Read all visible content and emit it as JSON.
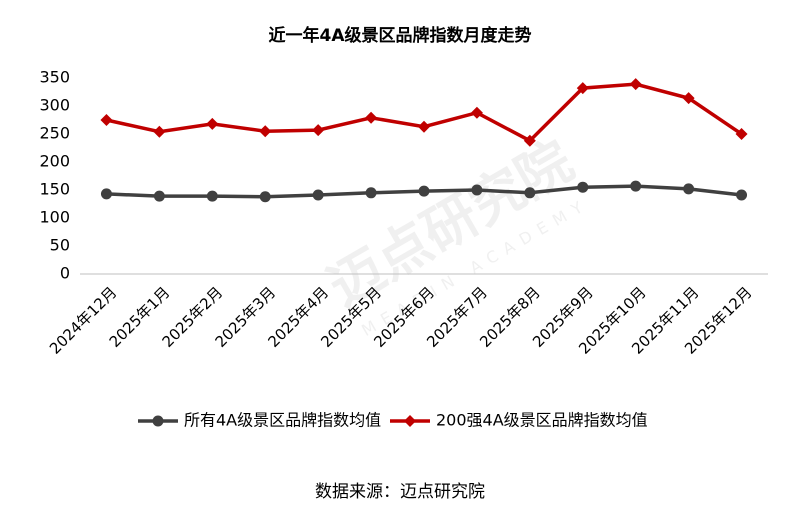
{
  "chart_data": {
    "type": "line",
    "title": "近一年4A级景区品牌指数月度走势",
    "categories": [
      "2024年12月",
      "2025年1月",
      "2025年2月",
      "2025年3月",
      "2025年4月",
      "2025年5月",
      "2025年6月",
      "2025年7月",
      "2025年8月",
      "2025年9月",
      "2025年10月",
      "2025年11月",
      "2025年12月"
    ],
    "series": [
      {
        "name": "所有4A级景区品牌指数均值",
        "color": "#404040",
        "values": [
          143,
          139,
          139,
          138,
          141,
          145,
          148,
          150,
          145,
          155,
          157,
          152,
          141
        ]
      },
      {
        "name": "200强4A级景区品牌指数均值",
        "color": "#c00000",
        "values": [
          275,
          254,
          268,
          255,
          257,
          279,
          263,
          288,
          238,
          332,
          339,
          314,
          250
        ]
      }
    ],
    "ylim": [
      0,
      350
    ],
    "yticks": [
      0,
      50,
      100,
      150,
      200,
      250,
      300,
      350
    ],
    "legend": "bottom",
    "source": "数据来源：迈点研究院",
    "watermark": [
      "迈点研究院",
      "MEADIN ACADEMY"
    ]
  }
}
